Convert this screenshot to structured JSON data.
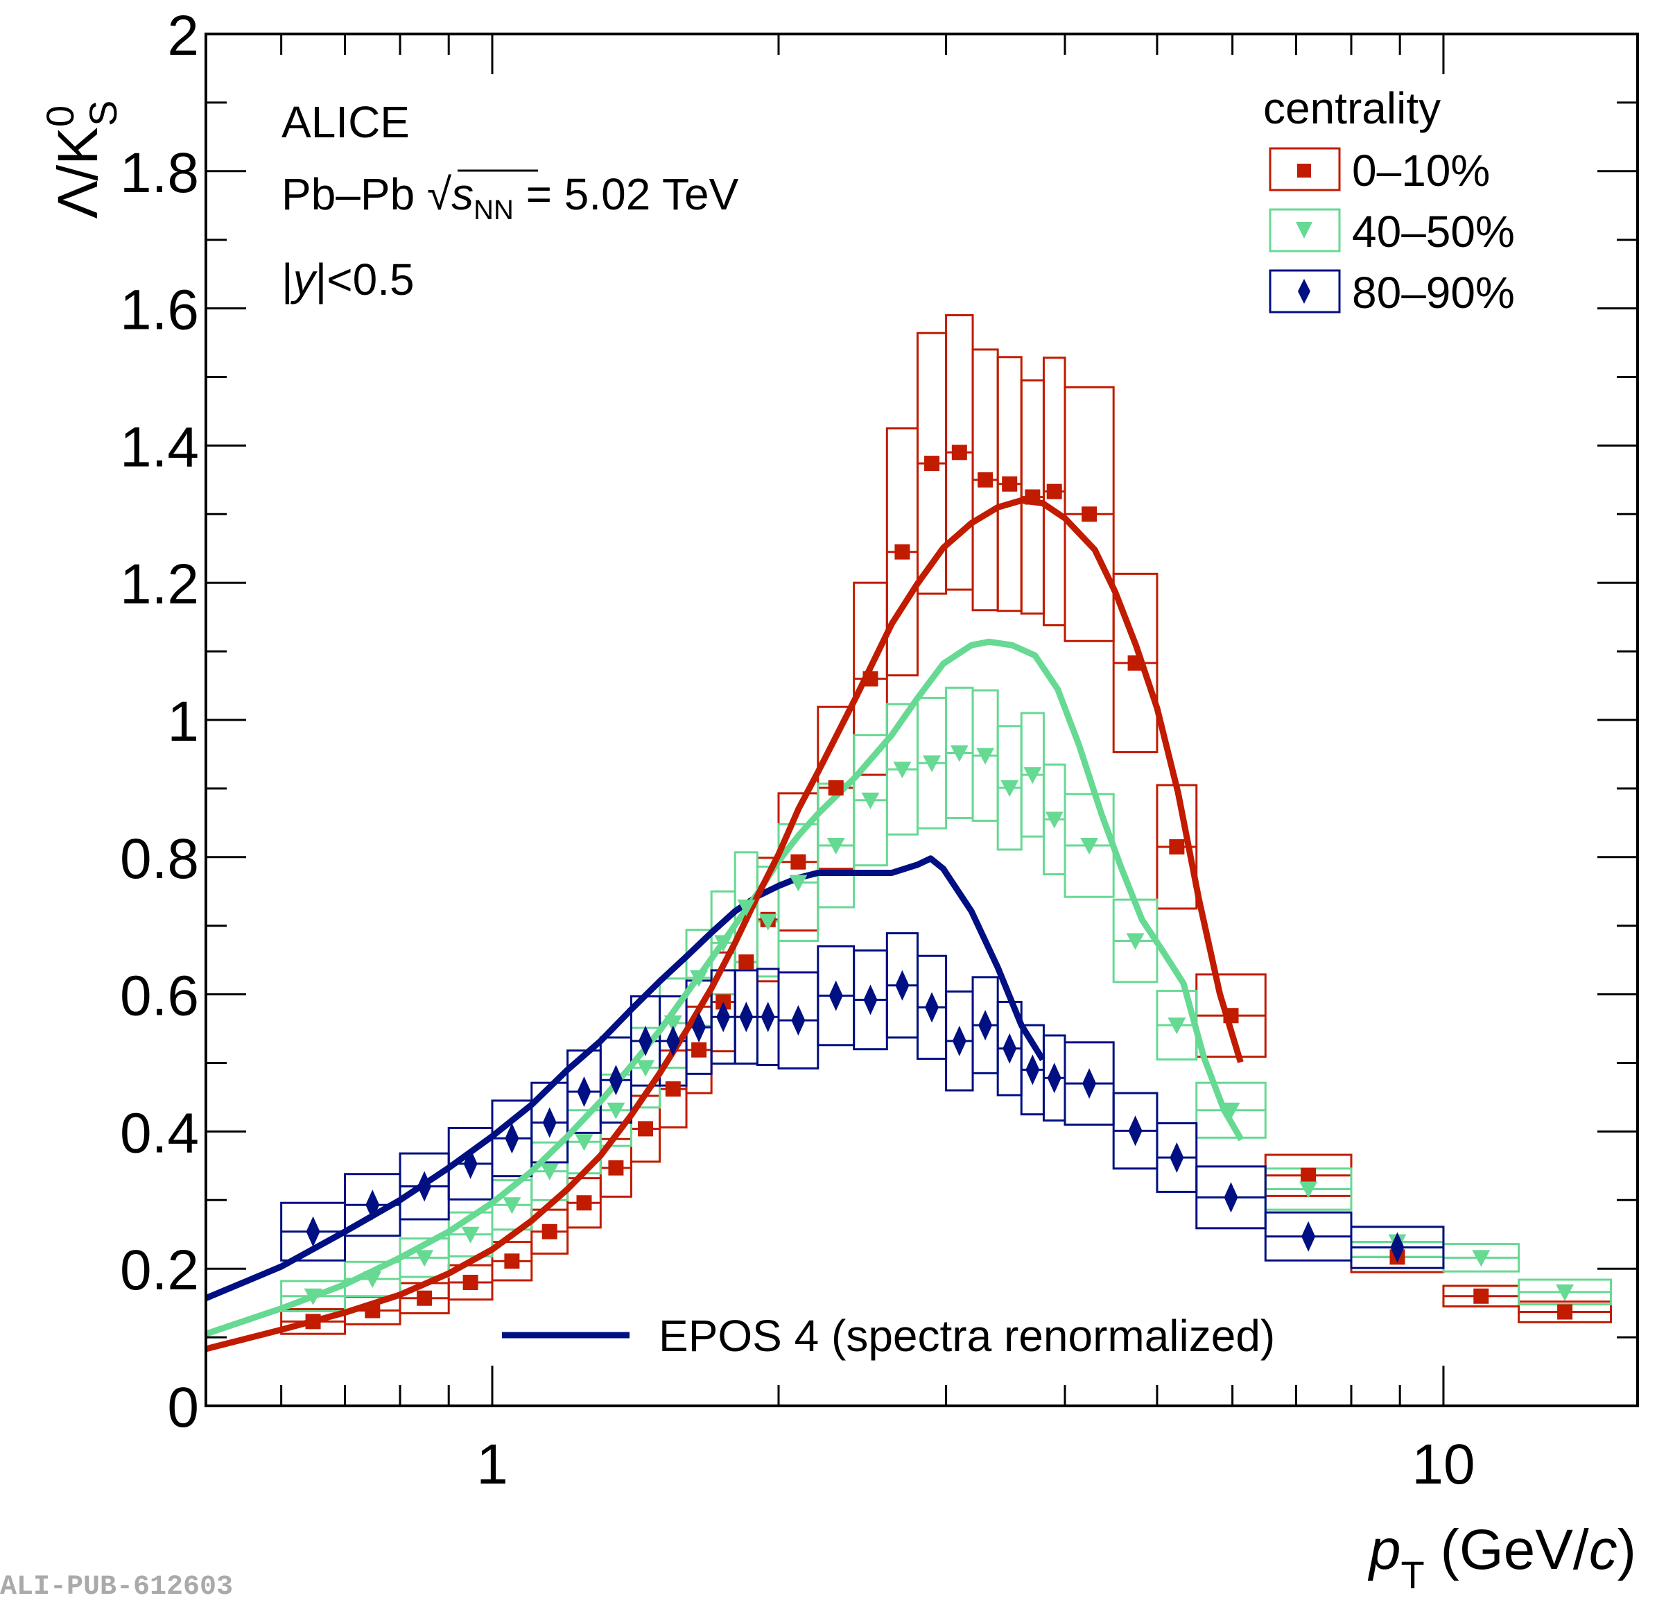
{
  "chart_data": {
    "type": "scatter",
    "title": "",
    "xlabel": "p_T (GeV/c)",
    "ylabel": "Λ/K0S",
    "xscale": "log",
    "xlim": [
      0.5,
      16
    ],
    "ylim": [
      0,
      2
    ],
    "xticks_major": [
      1,
      10
    ],
    "xtick_labels": [
      "1",
      "10"
    ],
    "yticks": [
      0,
      0.2,
      0.4,
      0.6,
      0.8,
      1,
      1.2,
      1.4,
      1.6,
      1.8,
      2
    ],
    "ytick_labels": [
      "0",
      "0.2",
      "0.4",
      "0.6",
      "0.8",
      "1",
      "1.2",
      "1.4",
      "1.6",
      "1.8",
      "2"
    ],
    "grid": false,
    "annotations": {
      "experiment": "ALICE",
      "system_prefix": "Pb–Pb ",
      "energy_sym": "s",
      "energy_sub": "NN",
      "energy_value": " = 5.02 TeV",
      "rapidity_y": "y",
      "rapidity_rest": "|<0.5",
      "rapidity_pre": "|"
    },
    "legend": {
      "title": "centrality",
      "placement": "top-right",
      "entries": [
        "0–10%",
        "40–50%",
        "80–90%"
      ]
    },
    "model_legend": {
      "label": "EPOS 4 (spectra renormalized)",
      "placement": "bottom-center"
    },
    "watermark": "ALI-PUB-612603",
    "series": [
      {
        "name": "0–10%",
        "color": "#c11b00",
        "marker": "square",
        "bins": [
          [
            0.6,
            0.7
          ],
          [
            0.7,
            0.8
          ],
          [
            0.8,
            0.9
          ],
          [
            0.9,
            1.0
          ],
          [
            1.0,
            1.1
          ],
          [
            1.1,
            1.2
          ],
          [
            1.2,
            1.3
          ],
          [
            1.3,
            1.4
          ],
          [
            1.4,
            1.5
          ],
          [
            1.5,
            1.6
          ],
          [
            1.6,
            1.7
          ],
          [
            1.7,
            1.8
          ],
          [
            1.8,
            1.9
          ],
          [
            1.9,
            2.0
          ],
          [
            2.0,
            2.2
          ],
          [
            2.2,
            2.4
          ],
          [
            2.4,
            2.6
          ],
          [
            2.6,
            2.8
          ],
          [
            2.8,
            3.0
          ],
          [
            3.0,
            3.2
          ],
          [
            3.2,
            3.4
          ],
          [
            3.4,
            3.6
          ],
          [
            3.6,
            3.8
          ],
          [
            3.8,
            4.0
          ],
          [
            4.0,
            4.5
          ],
          [
            4.5,
            5.0
          ],
          [
            5.0,
            5.5
          ],
          [
            5.5,
            6.5
          ],
          [
            6.5,
            8.0
          ],
          [
            8.0,
            10.0
          ],
          [
            10.0,
            12.0
          ],
          [
            12.0,
            15.0
          ]
        ],
        "values": [
          0.123,
          0.139,
          0.157,
          0.18,
          0.211,
          0.254,
          0.296,
          0.347,
          0.404,
          0.462,
          0.519,
          0.589,
          0.647,
          0.709,
          0.793,
          0.901,
          1.06,
          1.245,
          1.374,
          1.39,
          1.35,
          1.344,
          1.325,
          1.333,
          1.3,
          1.083,
          0.815,
          0.569,
          0.336,
          0.217,
          0.16,
          0.137
        ],
        "sys": [
          0.018,
          0.02,
          0.022,
          0.025,
          0.028,
          0.032,
          0.036,
          0.042,
          0.048,
          0.056,
          0.063,
          0.072,
          0.08,
          0.09,
          0.1,
          0.118,
          0.14,
          0.18,
          0.19,
          0.2,
          0.19,
          0.185,
          0.17,
          0.195,
          0.185,
          0.13,
          0.09,
          0.06,
          0.03,
          0.022,
          0.015,
          0.015
        ]
      },
      {
        "name": "40–50%",
        "color": "#66d993",
        "marker": "triangle-down",
        "bins": [
          [
            0.6,
            0.7
          ],
          [
            0.7,
            0.8
          ],
          [
            0.8,
            0.9
          ],
          [
            0.9,
            1.0
          ],
          [
            1.0,
            1.1
          ],
          [
            1.1,
            1.2
          ],
          [
            1.2,
            1.3
          ],
          [
            1.3,
            1.4
          ],
          [
            1.4,
            1.5
          ],
          [
            1.5,
            1.6
          ],
          [
            1.6,
            1.7
          ],
          [
            1.7,
            1.8
          ],
          [
            1.8,
            1.9
          ],
          [
            1.9,
            2.0
          ],
          [
            2.0,
            2.2
          ],
          [
            2.2,
            2.4
          ],
          [
            2.4,
            2.6
          ],
          [
            2.6,
            2.8
          ],
          [
            2.8,
            3.0
          ],
          [
            3.0,
            3.2
          ],
          [
            3.2,
            3.4
          ],
          [
            3.4,
            3.6
          ],
          [
            3.6,
            3.8
          ],
          [
            3.8,
            4.0
          ],
          [
            4.0,
            4.5
          ],
          [
            4.5,
            5.0
          ],
          [
            5.0,
            5.5
          ],
          [
            5.5,
            6.5
          ],
          [
            6.5,
            8.0
          ],
          [
            8.0,
            10.0
          ],
          [
            10.0,
            12.0
          ],
          [
            12.0,
            15.0
          ]
        ],
        "values": [
          0.16,
          0.185,
          0.216,
          0.25,
          0.293,
          0.342,
          0.385,
          0.431,
          0.493,
          0.558,
          0.624,
          0.675,
          0.727,
          0.706,
          0.763,
          0.817,
          0.883,
          0.928,
          0.937,
          0.952,
          0.948,
          0.901,
          0.92,
          0.855,
          0.817,
          0.678,
          0.555,
          0.431,
          0.316,
          0.239,
          0.216,
          0.166
        ],
        "sys": [
          0.022,
          0.025,
          0.028,
          0.032,
          0.036,
          0.042,
          0.046,
          0.052,
          0.058,
          0.065,
          0.07,
          0.075,
          0.08,
          0.08,
          0.085,
          0.09,
          0.095,
          0.095,
          0.095,
          0.095,
          0.095,
          0.09,
          0.09,
          0.08,
          0.075,
          0.06,
          0.05,
          0.04,
          0.03,
          0.022,
          0.02,
          0.018
        ]
      },
      {
        "name": "80–90%",
        "color": "#000f82",
        "marker": "diamond",
        "bins": [
          [
            0.6,
            0.7
          ],
          [
            0.7,
            0.8
          ],
          [
            0.8,
            0.9
          ],
          [
            0.9,
            1.0
          ],
          [
            1.0,
            1.1
          ],
          [
            1.1,
            1.2
          ],
          [
            1.2,
            1.3
          ],
          [
            1.3,
            1.4
          ],
          [
            1.4,
            1.5
          ],
          [
            1.5,
            1.6
          ],
          [
            1.6,
            1.7
          ],
          [
            1.7,
            1.8
          ],
          [
            1.8,
            1.9
          ],
          [
            1.9,
            2.0
          ],
          [
            2.0,
            2.2
          ],
          [
            2.2,
            2.4
          ],
          [
            2.4,
            2.6
          ],
          [
            2.6,
            2.8
          ],
          [
            2.8,
            3.0
          ],
          [
            3.0,
            3.2
          ],
          [
            3.2,
            3.4
          ],
          [
            3.4,
            3.6
          ],
          [
            3.6,
            3.8
          ],
          [
            3.8,
            4.0
          ],
          [
            4.0,
            4.5
          ],
          [
            4.5,
            5.0
          ],
          [
            5.0,
            5.5
          ],
          [
            5.5,
            6.5
          ],
          [
            6.5,
            8.0
          ],
          [
            8.0,
            10.0
          ]
        ],
        "values": [
          0.254,
          0.293,
          0.32,
          0.353,
          0.39,
          0.413,
          0.458,
          0.475,
          0.532,
          0.532,
          0.552,
          0.567,
          0.567,
          0.567,
          0.562,
          0.598,
          0.592,
          0.613,
          0.581,
          0.532,
          0.555,
          0.521,
          0.49,
          0.478,
          0.47,
          0.401,
          0.362,
          0.304,
          0.247,
          0.231
        ],
        "sys": [
          0.042,
          0.045,
          0.048,
          0.052,
          0.055,
          0.058,
          0.06,
          0.062,
          0.065,
          0.065,
          0.068,
          0.068,
          0.068,
          0.07,
          0.07,
          0.072,
          0.072,
          0.076,
          0.075,
          0.072,
          0.07,
          0.068,
          0.065,
          0.062,
          0.06,
          0.055,
          0.05,
          0.045,
          0.035,
          0.03
        ]
      }
    ],
    "models": [
      {
        "name": "EPOS 4 80–90%",
        "color": "#000f82",
        "x": [
          0.5,
          0.6,
          0.7,
          0.8,
          0.9,
          1.0,
          1.1,
          1.2,
          1.3,
          1.4,
          1.5,
          1.6,
          1.7,
          1.8,
          1.9,
          2.0,
          2.1,
          2.2,
          2.41,
          2.63,
          2.8,
          2.89,
          2.98,
          3.19,
          3.4,
          3.6,
          3.79
        ],
        "y": [
          0.157,
          0.203,
          0.254,
          0.3,
          0.347,
          0.393,
          0.439,
          0.49,
          0.532,
          0.578,
          0.619,
          0.655,
          0.69,
          0.721,
          0.743,
          0.758,
          0.77,
          0.777,
          0.777,
          0.777,
          0.789,
          0.798,
          0.783,
          0.721,
          0.639,
          0.555,
          0.505
        ]
      },
      {
        "name": "EPOS 4 40–50%",
        "color": "#66d993",
        "x": [
          0.5,
          0.6,
          0.7,
          0.8,
          0.9,
          1.0,
          1.1,
          1.2,
          1.3,
          1.4,
          1.5,
          1.6,
          1.7,
          1.8,
          1.9,
          2.0,
          2.1,
          2.2,
          2.41,
          2.63,
          2.8,
          2.98,
          3.19,
          3.33,
          3.52,
          3.72,
          3.93,
          4.14,
          4.37,
          4.58,
          4.82,
          5.07,
          5.33,
          5.6,
          5.88,
          6.13
        ],
        "y": [
          0.105,
          0.142,
          0.177,
          0.216,
          0.254,
          0.296,
          0.342,
          0.393,
          0.444,
          0.496,
          0.547,
          0.601,
          0.652,
          0.701,
          0.747,
          0.794,
          0.832,
          0.863,
          0.917,
          0.978,
          1.032,
          1.082,
          1.109,
          1.114,
          1.109,
          1.094,
          1.045,
          0.963,
          0.863,
          0.786,
          0.709,
          0.663,
          0.616,
          0.508,
          0.431,
          0.388
        ]
      },
      {
        "name": "EPOS 4 0–10%",
        "color": "#c11b00",
        "x": [
          0.5,
          0.6,
          0.7,
          0.8,
          0.9,
          1.0,
          1.1,
          1.2,
          1.3,
          1.4,
          1.5,
          1.6,
          1.7,
          1.8,
          1.9,
          2.0,
          2.1,
          2.2,
          2.41,
          2.63,
          2.8,
          2.98,
          3.19,
          3.4,
          3.6,
          3.79,
          4.0,
          4.3,
          4.52,
          4.75,
          5.0,
          5.26,
          5.53,
          5.82,
          6.12
        ],
        "y": [
          0.083,
          0.111,
          0.136,
          0.162,
          0.193,
          0.228,
          0.27,
          0.316,
          0.365,
          0.424,
          0.485,
          0.547,
          0.609,
          0.675,
          0.743,
          0.804,
          0.871,
          0.924,
          1.032,
          1.14,
          1.199,
          1.251,
          1.287,
          1.31,
          1.32,
          1.316,
          1.294,
          1.248,
          1.186,
          1.109,
          1.017,
          0.894,
          0.74,
          0.601,
          0.501
        ]
      }
    ]
  }
}
